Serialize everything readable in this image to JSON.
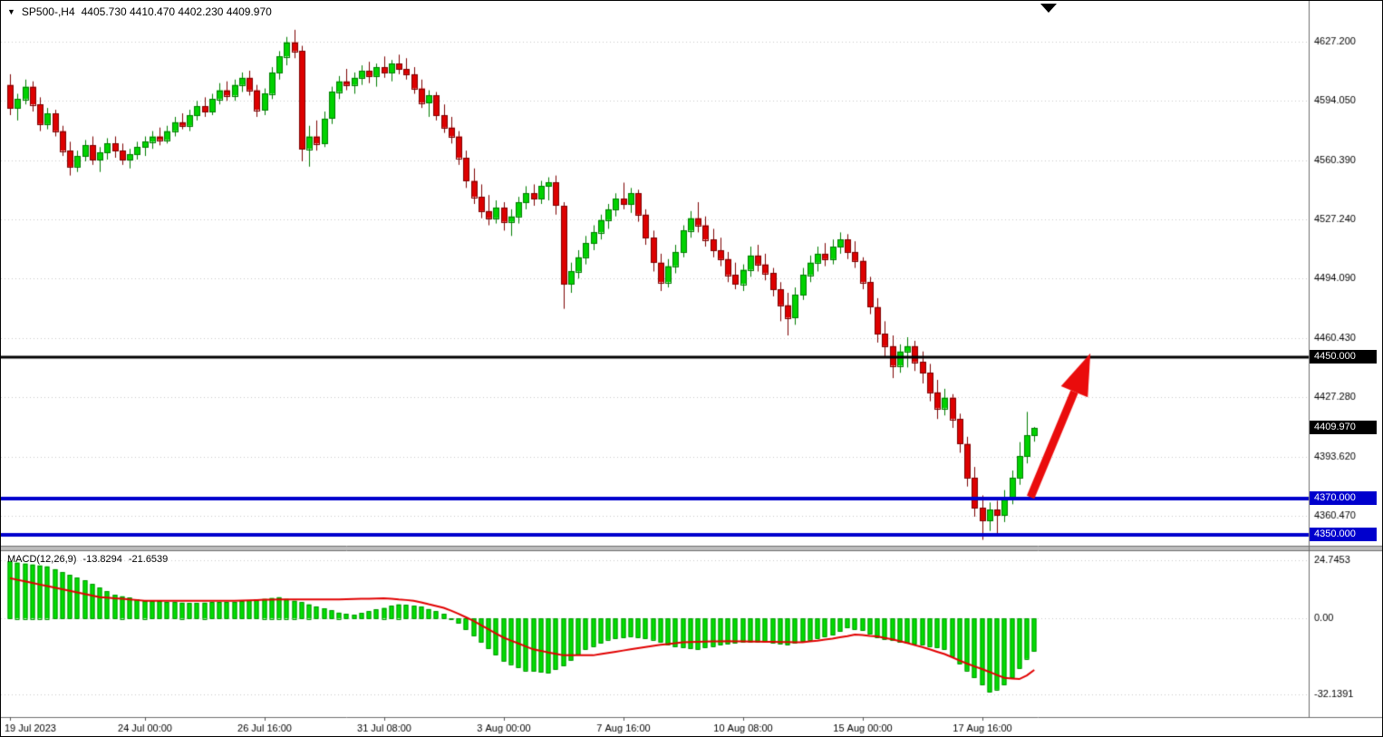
{
  "header": {
    "symbol_period": "SP500-,H4",
    "ohlc": "4405.730 4410.470 4402.230 4409.970"
  },
  "chart_data": {
    "type": "candlestick",
    "symbol": "SP500-",
    "timeframe": "H4",
    "grid": "on",
    "current_candle": {
      "open": 4405.73,
      "high": 4410.47,
      "low": 4402.23,
      "close": 4409.97
    },
    "colors": {
      "background": "#ffffff",
      "bull": "#00d200",
      "bull_border": "#007d00",
      "bear": "#dd0000",
      "bear_border": "#7d0000",
      "grid": "#c8c8c8",
      "macd_bar": "#00e000",
      "macd_bar_border": "#009600",
      "macd_signal": "#e10000",
      "arrow": "#ea0c0c",
      "axis_text": "#000000"
    },
    "price_axis": {
      "top_price": 4637.0,
      "bottom_price": 4344.2,
      "ticks": [
        {
          "price": 4627.2,
          "label": "4627.200"
        },
        {
          "price": 4594.05,
          "label": "4594.050"
        },
        {
          "price": 4560.39,
          "label": "4560.390"
        },
        {
          "price": 4527.24,
          "label": "4527.240"
        },
        {
          "price": 4494.09,
          "label": "4494.090"
        },
        {
          "price": 4460.43,
          "label": "4460.430"
        },
        {
          "price": 4427.28,
          "label": "4427.280"
        },
        {
          "price": 4393.62,
          "label": "4393.620"
        },
        {
          "price": 4360.47,
          "label": "4360.470"
        }
      ]
    },
    "time_axis": {
      "ticks": [
        {
          "index": 0,
          "label": "19 Jul 2023"
        },
        {
          "index": 18,
          "label": "24 Jul 00:00"
        },
        {
          "index": 34,
          "label": "26 Jul 16:00"
        },
        {
          "index": 50,
          "label": "31 Jul 08:00"
        },
        {
          "index": 66,
          "label": "3 Aug 00:00"
        },
        {
          "index": 82,
          "label": "7 Aug 16:00"
        },
        {
          "index": 98,
          "label": "10 Aug 08:00"
        },
        {
          "index": 114,
          "label": "15 Aug 00:00"
        },
        {
          "index": 130,
          "label": "17 Aug 16:00"
        }
      ]
    },
    "levels": [
      {
        "price": 4450,
        "label": "4450.000",
        "color": "#000000",
        "width": 3
      },
      {
        "price": 4370,
        "label": "4370.000",
        "color": "#0000cd",
        "width": 4
      },
      {
        "price": 4350,
        "label": "4350.000",
        "color": "#0000cd",
        "width": 4
      }
    ],
    "current_price": {
      "price": 4409.97,
      "label": "4409.970"
    },
    "arrow": {
      "from": {
        "index": 136.5,
        "price": 4371
      },
      "to": {
        "index": 144.5,
        "price": 4452
      }
    },
    "candles": [
      [
        4603,
        4609,
        4586,
        4590
      ],
      [
        4590,
        4598,
        4583,
        4595
      ],
      [
        4595,
        4606,
        4592,
        4602
      ],
      [
        4602,
        4605,
        4588,
        4592
      ],
      [
        4592,
        4596,
        4577,
        4581
      ],
      [
        4581,
        4590,
        4578,
        4587
      ],
      [
        4587,
        4589,
        4574,
        4577
      ],
      [
        4577,
        4580,
        4563,
        4566
      ],
      [
        4566,
        4571,
        4552,
        4557
      ],
      [
        4557,
        4566,
        4554,
        4563
      ],
      [
        4563,
        4572,
        4560,
        4569
      ],
      [
        4569,
        4574,
        4558,
        4561
      ],
      [
        4561,
        4568,
        4554,
        4565
      ],
      [
        4565,
        4573,
        4561,
        4570
      ],
      [
        4570,
        4574,
        4562,
        4566
      ],
      [
        4566,
        4570,
        4558,
        4561
      ],
      [
        4561,
        4567,
        4556,
        4564
      ],
      [
        4564,
        4571,
        4561,
        4568
      ],
      [
        4568,
        4574,
        4563,
        4571
      ],
      [
        4571,
        4577,
        4567,
        4574
      ],
      [
        4574,
        4579,
        4569,
        4572
      ],
      [
        4572,
        4580,
        4570,
        4577
      ],
      [
        4577,
        4585,
        4574,
        4582
      ],
      [
        4582,
        4587,
        4578,
        4580
      ],
      [
        4580,
        4589,
        4577,
        4586
      ],
      [
        4586,
        4594,
        4583,
        4591
      ],
      [
        4591,
        4596,
        4585,
        4588
      ],
      [
        4588,
        4598,
        4586,
        4595
      ],
      [
        4595,
        4604,
        4592,
        4600
      ],
      [
        4600,
        4605,
        4594,
        4597
      ],
      [
        4597,
        4606,
        4594,
        4603
      ],
      [
        4603,
        4610,
        4599,
        4607
      ],
      [
        4607,
        4611,
        4597,
        4600
      ],
      [
        4600,
        4603,
        4585,
        4589
      ],
      [
        4589,
        4601,
        4586,
        4598
      ],
      [
        4598,
        4613,
        4595,
        4610
      ],
      [
        4610,
        4622,
        4606,
        4619
      ],
      [
        4619,
        4630,
        4614,
        4627
      ],
      [
        4627,
        4634,
        4618,
        4622
      ],
      [
        4622,
        4625,
        4560,
        4567
      ],
      [
        4567,
        4580,
        4557,
        4574
      ],
      [
        4574,
        4583,
        4566,
        4570
      ],
      [
        4570,
        4588,
        4568,
        4584
      ],
      [
        4584,
        4602,
        4581,
        4599
      ],
      [
        4599,
        4608,
        4595,
        4605
      ],
      [
        4605,
        4612,
        4600,
        4603
      ],
      [
        4603,
        4610,
        4598,
        4607
      ],
      [
        4607,
        4614,
        4603,
        4611
      ],
      [
        4611,
        4616,
        4604,
        4608
      ],
      [
        4608,
        4615,
        4602,
        4613
      ],
      [
        4613,
        4619,
        4607,
        4610
      ],
      [
        4610,
        4617,
        4605,
        4615
      ],
      [
        4615,
        4620,
        4609,
        4612
      ],
      [
        4612,
        4618,
        4606,
        4609
      ],
      [
        4609,
        4613,
        4598,
        4601
      ],
      [
        4601,
        4606,
        4590,
        4593
      ],
      [
        4593,
        4600,
        4585,
        4597
      ],
      [
        4597,
        4599,
        4583,
        4586
      ],
      [
        4586,
        4592,
        4576,
        4579
      ],
      [
        4579,
        4585,
        4570,
        4574
      ],
      [
        4574,
        4577,
        4558,
        4562
      ],
      [
        4562,
        4566,
        4545,
        4549
      ],
      [
        4549,
        4556,
        4536,
        4540
      ],
      [
        4540,
        4547,
        4528,
        4532
      ],
      [
        4532,
        4541,
        4524,
        4528
      ],
      [
        4528,
        4538,
        4525,
        4534
      ],
      [
        4534,
        4537,
        4521,
        4526
      ],
      [
        4526,
        4533,
        4518,
        4529
      ],
      [
        4529,
        4540,
        4525,
        4537
      ],
      [
        4537,
        4546,
        4533,
        4542
      ],
      [
        4542,
        4547,
        4535,
        4539
      ],
      [
        4539,
        4549,
        4536,
        4546
      ],
      [
        4546,
        4551,
        4538,
        4548
      ],
      [
        4548,
        4552,
        4530,
        4535
      ],
      [
        4535,
        4537,
        4477,
        4491
      ],
      [
        4491,
        4503,
        4486,
        4498
      ],
      [
        4498,
        4510,
        4494,
        4506
      ],
      [
        4506,
        4518,
        4502,
        4514
      ],
      [
        4514,
        4524,
        4510,
        4520
      ],
      [
        4520,
        4530,
        4516,
        4527
      ],
      [
        4527,
        4536,
        4522,
        4533
      ],
      [
        4533,
        4542,
        4529,
        4539
      ],
      [
        4539,
        4548,
        4533,
        4536
      ],
      [
        4536,
        4545,
        4531,
        4542
      ],
      [
        4542,
        4544,
        4526,
        4530
      ],
      [
        4530,
        4533,
        4513,
        4517
      ],
      [
        4517,
        4521,
        4498,
        4503
      ],
      [
        4503,
        4508,
        4487,
        4492
      ],
      [
        4492,
        4505,
        4489,
        4501
      ],
      [
        4501,
        4513,
        4497,
        4509
      ],
      [
        4509,
        4524,
        4506,
        4521
      ],
      [
        4521,
        4532,
        4517,
        4528
      ],
      [
        4528,
        4537,
        4520,
        4524
      ],
      [
        4524,
        4529,
        4512,
        4516
      ],
      [
        4516,
        4522,
        4506,
        4510
      ],
      [
        4510,
        4517,
        4501,
        4505
      ],
      [
        4505,
        4509,
        4492,
        4496
      ],
      [
        4496,
        4503,
        4488,
        4491
      ],
      [
        4491,
        4502,
        4487,
        4499
      ],
      [
        4499,
        4512,
        4495,
        4507
      ],
      [
        4507,
        4513,
        4498,
        4502
      ],
      [
        4502,
        4508,
        4493,
        4497
      ],
      [
        4497,
        4500,
        4484,
        4488
      ],
      [
        4488,
        4492,
        4470,
        4479
      ],
      [
        4479,
        4486,
        4462,
        4472
      ],
      [
        4472,
        4489,
        4468,
        4485
      ],
      [
        4485,
        4500,
        4482,
        4496
      ],
      [
        4496,
        4507,
        4492,
        4503
      ],
      [
        4503,
        4512,
        4498,
        4508
      ],
      [
        4508,
        4514,
        4501,
        4505
      ],
      [
        4505,
        4516,
        4502,
        4512
      ],
      [
        4512,
        4520,
        4508,
        4516
      ],
      [
        4516,
        4519,
        4505,
        4509
      ],
      [
        4509,
        4515,
        4500,
        4504
      ],
      [
        4504,
        4506,
        4488,
        4492
      ],
      [
        4492,
        4495,
        4474,
        4478
      ],
      [
        4478,
        4483,
        4458,
        4463
      ],
      [
        4463,
        4470,
        4450,
        4456
      ],
      [
        4456,
        4462,
        4438,
        4445
      ],
      [
        4445,
        4457,
        4441,
        4453
      ],
      [
        4453,
        4461,
        4444,
        4456
      ],
      [
        4456,
        4459,
        4442,
        4447
      ],
      [
        4447,
        4453,
        4435,
        4441
      ],
      [
        4441,
        4446,
        4425,
        4430
      ],
      [
        4430,
        4437,
        4415,
        4421
      ],
      [
        4421,
        4432,
        4417,
        4427
      ],
      [
        4427,
        4429,
        4410,
        4415
      ],
      [
        4415,
        4418,
        4396,
        4401
      ],
      [
        4401,
        4405,
        4377,
        4382
      ],
      [
        4382,
        4388,
        4360,
        4365
      ],
      [
        4365,
        4372,
        4347,
        4358
      ],
      [
        4358,
        4368,
        4352,
        4364
      ],
      [
        4364,
        4369,
        4349,
        4361
      ],
      [
        4361,
        4375,
        4357,
        4371
      ],
      [
        4371,
        4386,
        4367,
        4382
      ],
      [
        4382,
        4402,
        4378,
        4394
      ],
      [
        4394,
        4419,
        4390,
        4405.7
      ],
      [
        4405.73,
        4410.47,
        4402.23,
        4409.97
      ]
    ],
    "macd": {
      "label": "MACD(12,26,9)",
      "main_value": "-13.8294",
      "signal_value": "-21.6539",
      "axis": {
        "top_value": 28,
        "bottom_value": -40,
        "ticks": [
          {
            "value": 24.7453,
            "label": "24.7453"
          },
          {
            "value": 0,
            "label": "0.00"
          },
          {
            "value": -32.1391,
            "label": "-32.1391"
          }
        ]
      },
      "histogram": [
        24,
        23.6,
        23.2,
        22.8,
        22.4,
        22,
        20.8,
        19.6,
        18.4,
        17.2,
        16,
        14.5,
        13,
        11.5,
        10,
        9.4,
        8.8,
        8.1,
        7.5,
        7.3,
        7.2,
        7,
        6.8,
        6.7,
        6.5,
        6.6,
        6.7,
        6.8,
        6.9,
        6.9,
        7,
        7.3,
        7.7,
        8,
        8.3,
        8.7,
        9,
        8.3,
        7.5,
        6.8,
        6,
        5.1,
        4.3,
        3.4,
        2.5,
        2,
        1.5,
        2.3,
        3,
        3.8,
        4.5,
        5.3,
        6,
        5.7,
        5.3,
        5,
        4,
        3,
        2,
        0,
        -2,
        -4.7,
        -7.3,
        -10,
        -12.7,
        -15.3,
        -18,
        -19.3,
        -20.7,
        -22,
        -22.3,
        -22.7,
        -23,
        -21.5,
        -20,
        -17.7,
        -15.3,
        -13,
        -11.7,
        -10.3,
        -9,
        -8.5,
        -8,
        -7.5,
        -8,
        -8.5,
        -9,
        -10,
        -11,
        -12,
        -12.3,
        -12.7,
        -13,
        -12.3,
        -11.7,
        -11,
        -10.7,
        -10.3,
        -10,
        -10,
        -10,
        -10,
        -10.3,
        -10.7,
        -11,
        -10.3,
        -9.7,
        -9,
        -8.3,
        -7.7,
        -7,
        -5.5,
        -4,
        -4.5,
        -5,
        -6.5,
        -8,
        -8.7,
        -9.3,
        -10,
        -10.3,
        -10.7,
        -11,
        -11.7,
        -12.3,
        -13,
        -16,
        -19,
        -22,
        -25,
        -28,
        -31,
        -30,
        -28,
        -25,
        -21,
        -17,
        -13.8294
      ],
      "signal": [
        17,
        16.3,
        15.7,
        15,
        14.3,
        13.7,
        13,
        12.3,
        11.7,
        11,
        10.3,
        9.7,
        9,
        8.8,
        8.5,
        8.3,
        8,
        7.8,
        7.5,
        7.5,
        7.5,
        7.5,
        7.5,
        7.5,
        7.5,
        7.5,
        7.5,
        7.5,
        7.5,
        7.5,
        7.5,
        7.6,
        7.7,
        7.8,
        7.9,
        7.9,
        8,
        8,
        8,
        8,
        8,
        8,
        8,
        8,
        8,
        8.1,
        8.2,
        8.3,
        8.3,
        8.4,
        8.5,
        8.3,
        8,
        7.8,
        7.5,
        6.8,
        6,
        5.3,
        4.5,
        3.3,
        2,
        0.5,
        -1,
        -2.8,
        -4.5,
        -6.3,
        -8,
        -9.3,
        -10.5,
        -11.8,
        -13,
        -13.6,
        -14.3,
        -14.9,
        -15.5,
        -15.5,
        -15.5,
        -15.5,
        -15.5,
        -15,
        -14.5,
        -14,
        -13.5,
        -13,
        -12.5,
        -12,
        -11.5,
        -11.1,
        -10.8,
        -10.4,
        -10,
        -9.9,
        -9.8,
        -9.7,
        -9.6,
        -9.6,
        -9.5,
        -9.6,
        -9.6,
        -9.7,
        -9.7,
        -9.8,
        -9.8,
        -9.9,
        -9.9,
        -10,
        -10,
        -9.6,
        -9.3,
        -8.9,
        -8.5,
        -7.9,
        -7.4,
        -6.8,
        -7,
        -7.3,
        -7.5,
        -8.2,
        -8.8,
        -9.5,
        -10.3,
        -11.2,
        -12,
        -13,
        -14,
        -15,
        -16.3,
        -17.7,
        -19,
        -20.2,
        -21.3,
        -22.5,
        -23.8,
        -25,
        -25.3,
        -25.5,
        -24,
        -21.6539
      ]
    }
  }
}
